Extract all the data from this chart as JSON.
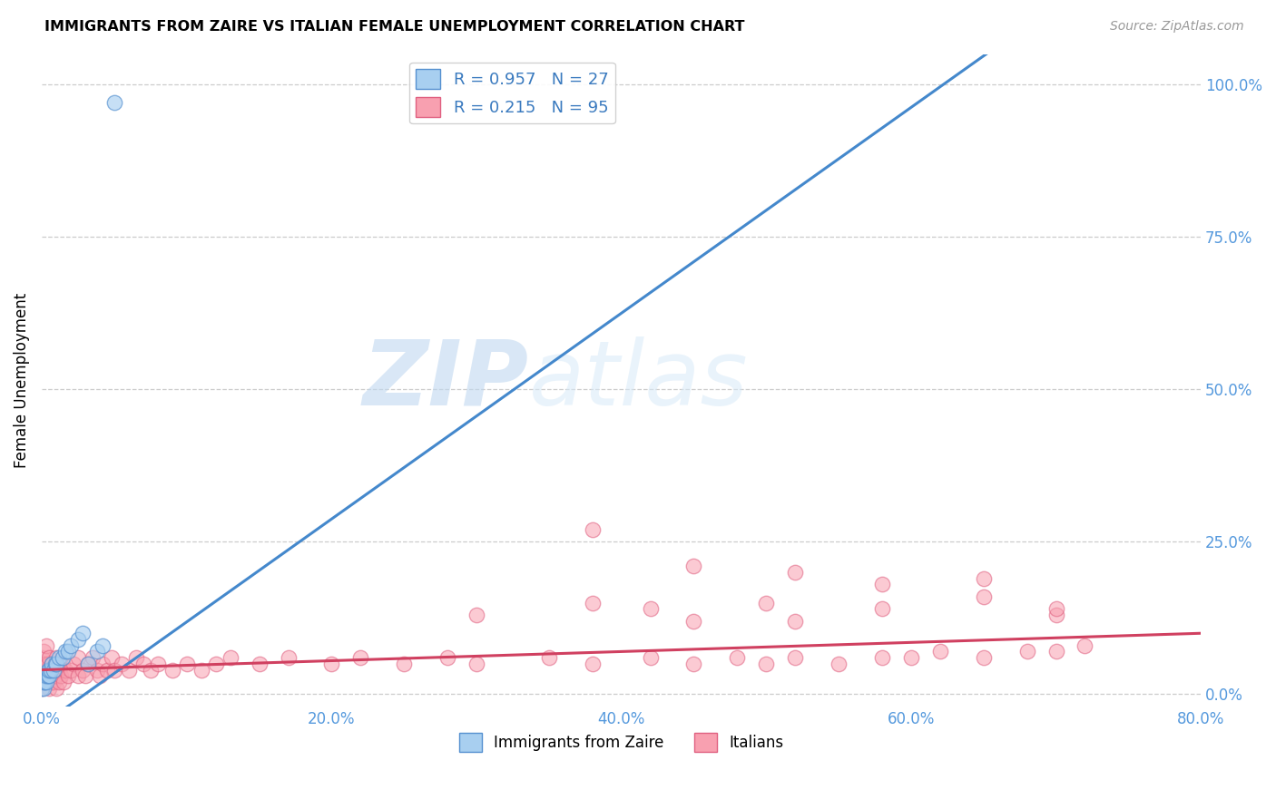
{
  "title": "IMMIGRANTS FROM ZAIRE VS ITALIAN FEMALE UNEMPLOYMENT CORRELATION CHART",
  "source_text": "Source: ZipAtlas.com",
  "ylabel": "Female Unemployment",
  "xlim": [
    0.0,
    0.8
  ],
  "ylim": [
    -0.02,
    1.05
  ],
  "xtick_labels": [
    "0.0%",
    "20.0%",
    "40.0%",
    "60.0%",
    "80.0%"
  ],
  "xtick_positions": [
    0.0,
    0.2,
    0.4,
    0.6,
    0.8
  ],
  "ytick_labels_right": [
    "0.0%",
    "25.0%",
    "50.0%",
    "75.0%",
    "100.0%"
  ],
  "ytick_positions_right": [
    0.0,
    0.25,
    0.5,
    0.75,
    1.0
  ],
  "watermark_zip": "ZIP",
  "watermark_atlas": "atlas",
  "blue_color": "#a8cff0",
  "pink_color": "#f8a0b0",
  "blue_edge_color": "#5590d0",
  "pink_edge_color": "#e06080",
  "blue_line_color": "#4488cc",
  "pink_line_color": "#d04060",
  "legend_R_blue": "R = 0.957",
  "legend_N_blue": "N = 27",
  "legend_R_pink": "R = 0.215",
  "legend_N_pink": "N = 95",
  "blue_scatter_x": [
    0.0,
    0.001,
    0.001,
    0.002,
    0.002,
    0.003,
    0.003,
    0.004,
    0.004,
    0.005,
    0.005,
    0.006,
    0.007,
    0.008,
    0.009,
    0.01,
    0.012,
    0.014,
    0.016,
    0.018,
    0.02,
    0.025,
    0.028,
    0.032,
    0.038,
    0.042,
    0.05
  ],
  "blue_scatter_y": [
    0.01,
    0.01,
    0.02,
    0.02,
    0.03,
    0.02,
    0.03,
    0.03,
    0.04,
    0.03,
    0.04,
    0.04,
    0.05,
    0.04,
    0.05,
    0.05,
    0.06,
    0.06,
    0.07,
    0.07,
    0.08,
    0.09,
    0.1,
    0.05,
    0.07,
    0.08,
    0.97
  ],
  "blue_line_x": [
    0.0,
    0.8
  ],
  "blue_line_y": [
    -0.05,
    1.3
  ],
  "pink_line_x": [
    0.0,
    0.8
  ],
  "pink_line_y": [
    0.04,
    0.1
  ],
  "pink_scatter_x": [
    0.0,
    0.0,
    0.0,
    0.001,
    0.001,
    0.001,
    0.002,
    0.002,
    0.003,
    0.003,
    0.003,
    0.004,
    0.004,
    0.005,
    0.005,
    0.005,
    0.006,
    0.006,
    0.007,
    0.007,
    0.008,
    0.008,
    0.009,
    0.01,
    0.01,
    0.01,
    0.012,
    0.012,
    0.013,
    0.014,
    0.015,
    0.016,
    0.018,
    0.02,
    0.022,
    0.025,
    0.025,
    0.028,
    0.03,
    0.032,
    0.035,
    0.038,
    0.04,
    0.042,
    0.045,
    0.048,
    0.05,
    0.055,
    0.06,
    0.065,
    0.07,
    0.075,
    0.08,
    0.09,
    0.1,
    0.11,
    0.12,
    0.13,
    0.15,
    0.17,
    0.2,
    0.22,
    0.25,
    0.28,
    0.3,
    0.35,
    0.38,
    0.42,
    0.45,
    0.48,
    0.5,
    0.52,
    0.55,
    0.58,
    0.6,
    0.62,
    0.65,
    0.68,
    0.7,
    0.72,
    0.38,
    0.45,
    0.52,
    0.58,
    0.65,
    0.7,
    0.42,
    0.5,
    0.58,
    0.65,
    0.7,
    0.3,
    0.38,
    0.45,
    0.52
  ],
  "pink_scatter_y": [
    0.01,
    0.03,
    0.06,
    0.02,
    0.04,
    0.07,
    0.02,
    0.05,
    0.02,
    0.04,
    0.08,
    0.03,
    0.05,
    0.01,
    0.03,
    0.06,
    0.02,
    0.04,
    0.02,
    0.05,
    0.02,
    0.04,
    0.03,
    0.01,
    0.03,
    0.06,
    0.02,
    0.04,
    0.03,
    0.05,
    0.02,
    0.04,
    0.03,
    0.04,
    0.05,
    0.03,
    0.06,
    0.04,
    0.03,
    0.05,
    0.06,
    0.04,
    0.03,
    0.05,
    0.04,
    0.06,
    0.04,
    0.05,
    0.04,
    0.06,
    0.05,
    0.04,
    0.05,
    0.04,
    0.05,
    0.04,
    0.05,
    0.06,
    0.05,
    0.06,
    0.05,
    0.06,
    0.05,
    0.06,
    0.05,
    0.06,
    0.05,
    0.06,
    0.05,
    0.06,
    0.05,
    0.06,
    0.05,
    0.06,
    0.06,
    0.07,
    0.06,
    0.07,
    0.07,
    0.08,
    0.27,
    0.21,
    0.2,
    0.18,
    0.19,
    0.13,
    0.14,
    0.15,
    0.14,
    0.16,
    0.14,
    0.13,
    0.15,
    0.12,
    0.12
  ],
  "background_color": "#ffffff",
  "grid_color": "#cccccc"
}
